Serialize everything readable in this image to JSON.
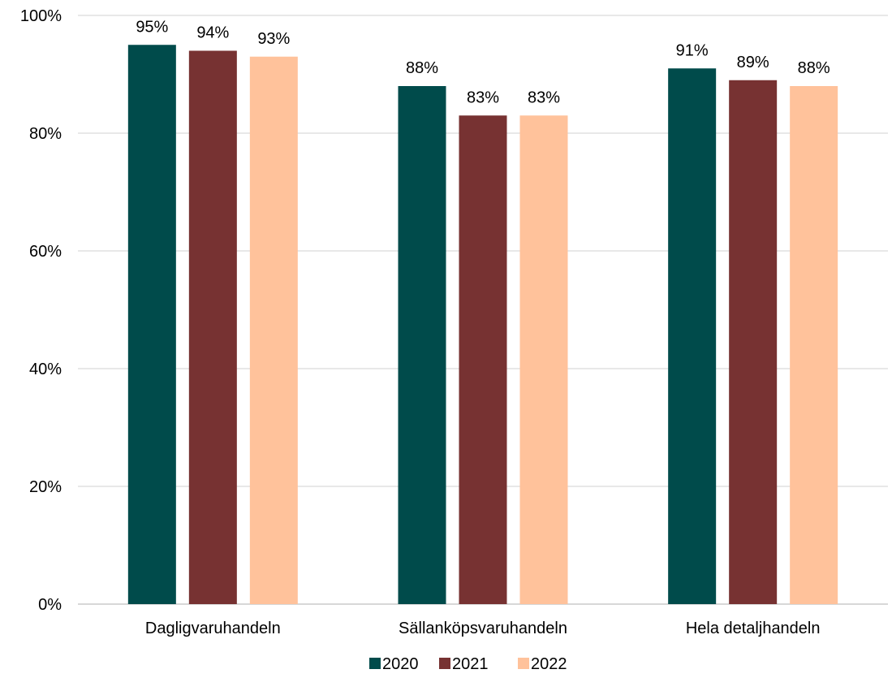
{
  "chart_data": {
    "type": "bar",
    "title": "",
    "xlabel": "",
    "ylabel": "",
    "categories": [
      "Dagligvaruhandeln",
      "Sällanköpsvaruhandeln",
      "Hela detaljhandeln"
    ],
    "series": [
      {
        "name": "2020",
        "color": "#004b4b",
        "values": [
          95,
          88,
          91
        ],
        "labels": [
          "95%",
          "88%",
          "91%"
        ]
      },
      {
        "name": "2021",
        "color": "#773232",
        "values": [
          94,
          83,
          89
        ],
        "labels": [
          "94%",
          "83%",
          "89%"
        ]
      },
      {
        "name": "2022",
        "color": "#ffc29b",
        "values": [
          93,
          83,
          88
        ],
        "labels": [
          "93%",
          "83%",
          "88%"
        ]
      }
    ],
    "ylim": [
      0,
      100
    ],
    "yticks": [
      0,
      20,
      40,
      60,
      80,
      100
    ],
    "ytick_labels": [
      "0%",
      "20%",
      "40%",
      "60%",
      "80%",
      "100%"
    ],
    "grid": true,
    "legend_position": "bottom"
  }
}
